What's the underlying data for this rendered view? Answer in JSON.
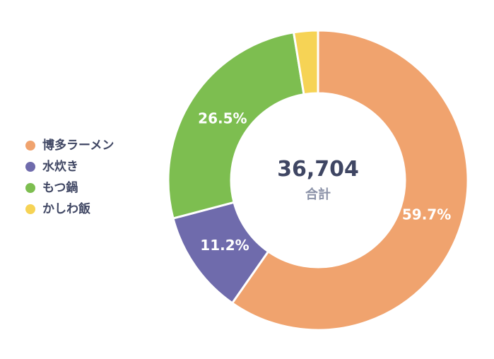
{
  "chart_data": {
    "type": "pie",
    "subtype": "donut",
    "title": "",
    "center_value": "36,704",
    "center_label": "合計",
    "legend_position": "left",
    "background": "#ffffff",
    "start_angle_deg": 0,
    "direction": "clockwise",
    "segments": [
      {
        "label": "博多ラーメン",
        "value": 59.7,
        "display": "59.7%",
        "color": "#F0A36E"
      },
      {
        "label": "水炊き",
        "value": 11.2,
        "display": "11.2%",
        "color": "#6F6BAC"
      },
      {
        "label": "もつ鍋",
        "value": 26.5,
        "display": "26.5%",
        "color": "#7DBE50"
      },
      {
        "label": "かしわ飯",
        "value": 2.6,
        "display": "",
        "color": "#F6D355"
      }
    ]
  }
}
